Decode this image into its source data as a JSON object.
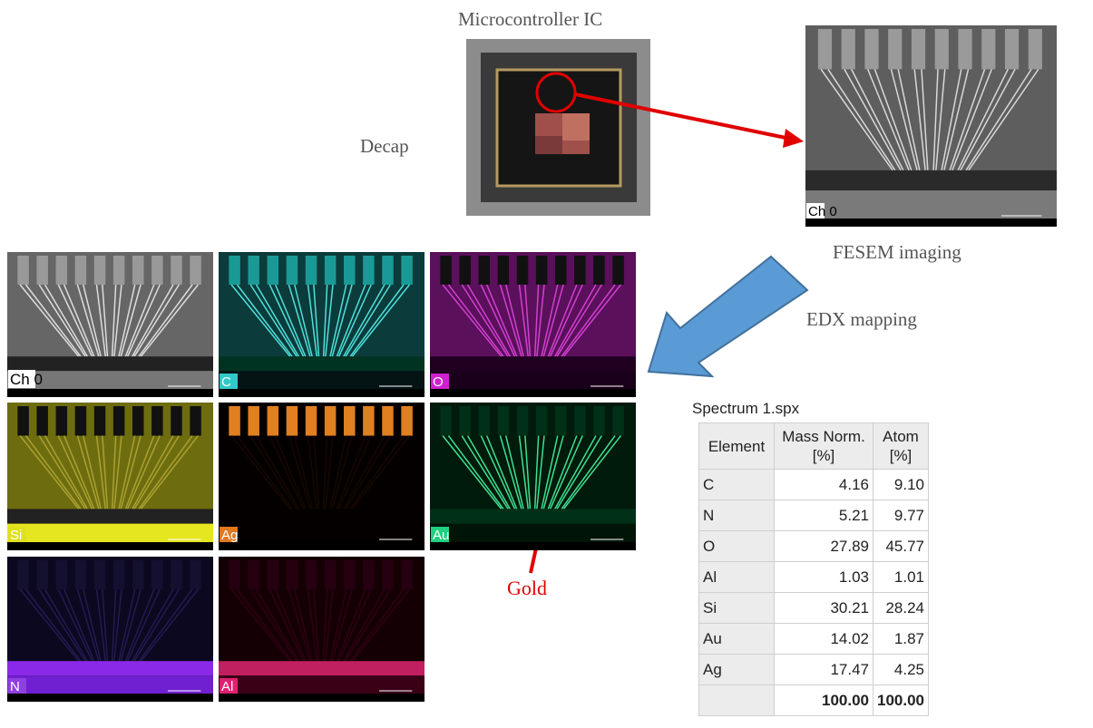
{
  "header": {
    "title": "Microcontroller IC"
  },
  "steps": {
    "decap": "Decap",
    "fesem": "FESEM imaging",
    "edx": "EDX mapping"
  },
  "images": {
    "fesem_label": "Ch 0"
  },
  "maps": [
    {
      "label": "Ch 0"
    },
    {
      "label": "C"
    },
    {
      "label": "O"
    },
    {
      "label": "Si"
    },
    {
      "label": "Ag"
    },
    {
      "label": "Au"
    },
    {
      "label": "N"
    },
    {
      "label": "Al"
    }
  ],
  "annotation": "Gold",
  "table": {
    "title": "Spectrum 1.spx",
    "headers": [
      "Element",
      "Mass Norm. [%]",
      "Atom [%]"
    ],
    "rows": [
      [
        "C",
        "4.16",
        "9.10"
      ],
      [
        "N",
        "5.21",
        "9.77"
      ],
      [
        "O",
        "27.89",
        "45.77"
      ],
      [
        "Al",
        "1.03",
        "1.01"
      ],
      [
        "Si",
        "30.21",
        "28.24"
      ],
      [
        "Au",
        "14.02",
        "1.87"
      ],
      [
        "Ag",
        "17.47",
        "4.25"
      ]
    ],
    "total": [
      "100.00",
      "100.00"
    ]
  }
}
